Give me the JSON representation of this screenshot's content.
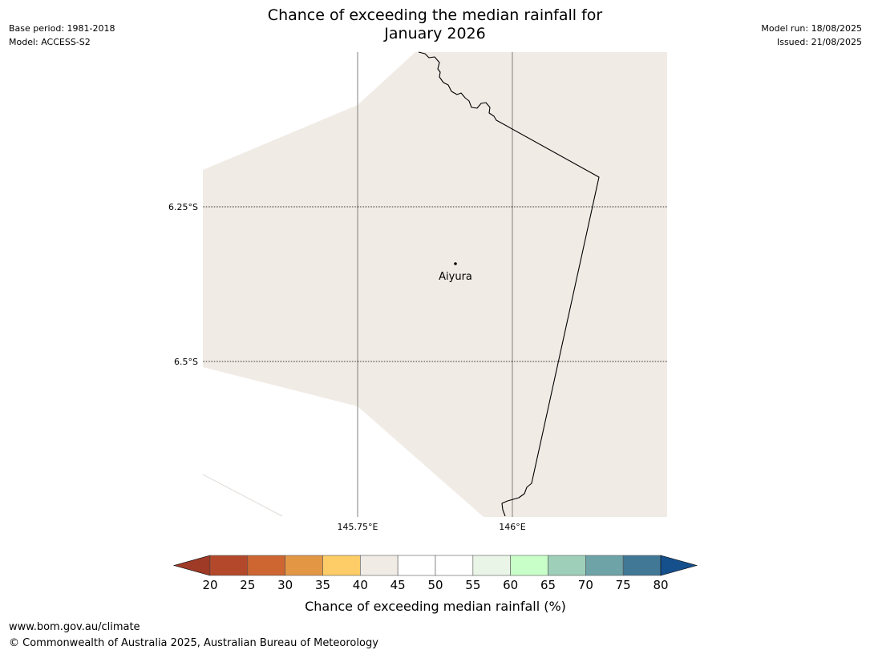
{
  "title": {
    "line1": "Chance of exceeding the median rainfall for",
    "line2": "January 2026"
  },
  "meta_left": {
    "base_period": "Base period: 1981-2018",
    "model": "Model: ACCESS-S2"
  },
  "meta_right": {
    "model_run": "Model run: 18/08/2025",
    "issued": "Issued: 21/08/2025"
  },
  "map": {
    "latitude_labels": [
      "6.25°S",
      "6.5°S"
    ],
    "longitude_labels": [
      "145.75°E",
      "146°E"
    ],
    "place": {
      "name": "Aiyura"
    },
    "land_color": "#f0ebe5",
    "gridline_color": "#7f7f7f"
  },
  "colorbar": {
    "ticks": [
      "20",
      "25",
      "30",
      "35",
      "40",
      "45",
      "50",
      "55",
      "60",
      "65",
      "70",
      "75",
      "80"
    ],
    "colors": [
      "#b3492a",
      "#cd6631",
      "#e39745",
      "#ffcd67",
      "#f0ebe5",
      "#ffffff",
      "#ffffff",
      "#e9f5e6",
      "#c8ffc8",
      "#9ed0b9",
      "#6ea3a8",
      "#417896"
    ],
    "under_color": "#9e3a26",
    "over_color": "#16508c",
    "label": "Chance of exceeding median rainfall (%)"
  },
  "footer": {
    "url": "www.bom.gov.au/climate",
    "copyright": "© Commonwealth of Australia 2025, Australian Bureau of Meteorology"
  }
}
